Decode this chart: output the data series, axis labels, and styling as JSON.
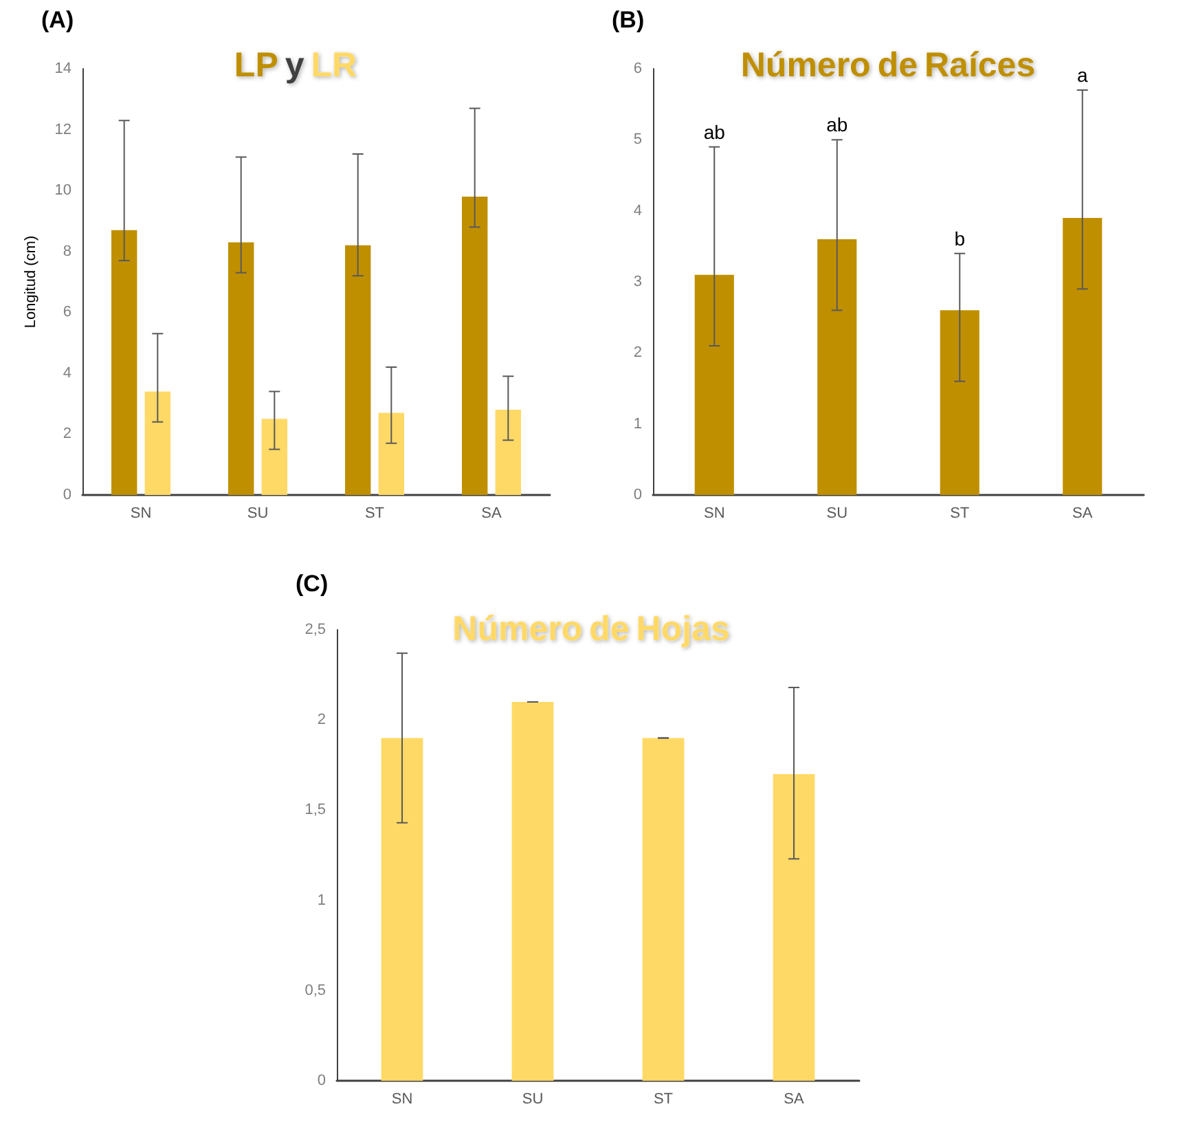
{
  "chart_data": [
    {
      "type": "bar",
      "title": "LP y LR",
      "ylabel": "Longitud (cm)",
      "categories": [
        "SN",
        "SU",
        "ST",
        "SA"
      ],
      "series": [
        {
          "color": "#bf8f00",
          "values": [
            8.7,
            8.3,
            8.2,
            9.8
          ],
          "errors": [
            [
              7.7,
              12.3
            ],
            [
              7.3,
              11.1
            ],
            [
              7.2,
              11.2
            ],
            [
              8.8,
              12.7
            ]
          ]
        },
        {
          "color": "#ffd966",
          "values": [
            3.4,
            2.5,
            2.7,
            2.8
          ],
          "errors": [
            [
              2.4,
              5.3
            ],
            [
              1.5,
              3.4
            ],
            [
              1.7,
              4.2
            ],
            [
              1.8,
              3.9
            ]
          ]
        }
      ],
      "ylim": [
        0,
        14
      ],
      "yticks": [
        0,
        2,
        4,
        6,
        8,
        10,
        12,
        14
      ],
      "annotations": [
        "(A)"
      ]
    },
    {
      "type": "bar",
      "title": "Número de Raíces",
      "categories": [
        "SN",
        "SU",
        "ST",
        "SA"
      ],
      "series": [
        {
          "color": "#bf8f00",
          "values": [
            3.1,
            3.6,
            2.6,
            3.9
          ],
          "errors": [
            [
              2.1,
              4.9
            ],
            [
              2.6,
              5.0
            ],
            [
              1.6,
              3.4
            ],
            [
              2.9,
              5.7
            ]
          ]
        }
      ],
      "ylim": [
        0,
        6
      ],
      "yticks": [
        0,
        1,
        2,
        3,
        4,
        5,
        6
      ],
      "annotations": [
        "(B)",
        {
          "text": "ab",
          "x": "SN",
          "y": 4.9
        },
        {
          "text": "ab",
          "x": "SU",
          "y": 5.0
        },
        {
          "text": "b",
          "x": "ST",
          "y": 3.4
        },
        {
          "text": "a",
          "x": "SA",
          "y": 5.7
        }
      ]
    },
    {
      "type": "bar",
      "title": "Número de Hojas",
      "categories": [
        "SN",
        "SU",
        "ST",
        "SA"
      ],
      "series": [
        {
          "color": "#ffd966",
          "values": [
            1.9,
            2.1,
            1.9,
            1.7
          ],
          "errors": [
            [
              1.43,
              2.37
            ],
            0,
            0,
            [
              1.23,
              2.18
            ]
          ]
        }
      ],
      "ylim": [
        0,
        2.5
      ],
      "yticks": [
        0,
        {
          "value": 0.5,
          "label": "0,5"
        },
        1,
        {
          "value": 1.5,
          "label": "1,5"
        },
        2,
        {
          "value": 2.5,
          "label": "2,5"
        }
      ],
      "annotations": [
        "(C)"
      ]
    }
  ]
}
